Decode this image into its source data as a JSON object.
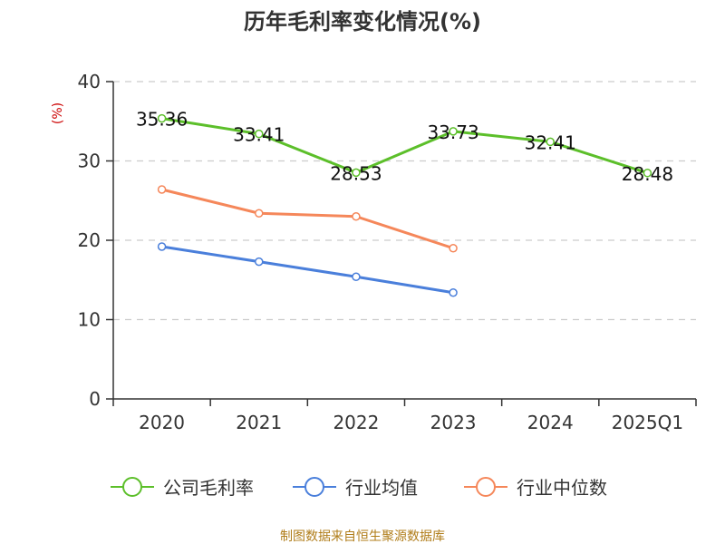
{
  "chart_data": {
    "type": "line",
    "title": "历年毛利率变化情况(%)",
    "ylabel": "(%)",
    "categories": [
      "2020",
      "2021",
      "2022",
      "2023",
      "2024",
      "2025Q1"
    ],
    "ylim": [
      0,
      40
    ],
    "yticks": [
      0,
      10,
      20,
      30,
      40
    ],
    "grid": true,
    "legend_position": "bottom",
    "series": [
      {
        "name": "公司毛利率",
        "color": "#5cbf2a",
        "values": [
          35.36,
          33.41,
          28.53,
          33.73,
          32.41,
          28.48
        ],
        "labels": [
          "35.36",
          "33.41",
          "28.53",
          "33.73",
          "32.41",
          "28.48"
        ]
      },
      {
        "name": "行业均值",
        "color": "#4a7fdb",
        "values": [
          19.2,
          17.3,
          15.4,
          13.4,
          null,
          null
        ]
      },
      {
        "name": "行业中位数",
        "color": "#f5875a",
        "values": [
          26.4,
          23.4,
          23.0,
          19.0,
          null,
          null
        ]
      }
    ]
  },
  "source": "制图数据来自恒生聚源数据库"
}
